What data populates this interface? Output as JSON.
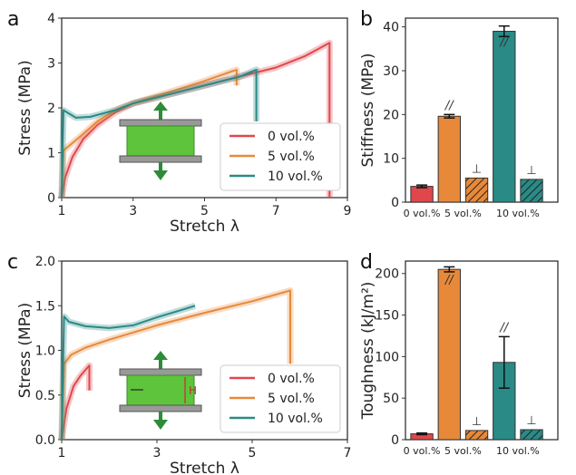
{
  "chart_data": [
    {
      "panel": "a",
      "type": "line",
      "xlabel": "Stretch λ",
      "ylabel": "Stress (MPa)",
      "xlim": [
        1,
        9
      ],
      "ylim": [
        0,
        4
      ],
      "xticks": [
        "1",
        "3",
        "5",
        "7",
        "9"
      ],
      "yticks": [
        "0",
        "1",
        "2",
        "3",
        "4"
      ],
      "legend_position": "lower-right",
      "series": [
        {
          "name": "0 vol.%",
          "color": "#e0474c",
          "x": [
            1.0,
            1.1,
            1.3,
            1.6,
            2.0,
            2.5,
            3.0,
            4.0,
            5.0,
            6.0,
            7.0,
            7.8,
            8.5,
            8.5
          ],
          "y": [
            0.0,
            0.45,
            0.9,
            1.3,
            1.62,
            1.9,
            2.1,
            2.3,
            2.5,
            2.7,
            2.9,
            3.15,
            3.45,
            0.0
          ]
        },
        {
          "name": "5 vol.%",
          "color": "#e8893a",
          "x": [
            1.0,
            1.05,
            1.2,
            1.5,
            2.0,
            2.5,
            3.0,
            4.0,
            5.0,
            5.9,
            5.9
          ],
          "y": [
            0.0,
            1.05,
            1.15,
            1.35,
            1.7,
            1.95,
            2.1,
            2.35,
            2.6,
            2.85,
            2.5
          ]
        },
        {
          "name": "10 vol.%",
          "color": "#2a8a86",
          "x": [
            1.0,
            1.05,
            1.15,
            1.4,
            1.8,
            2.5,
            3.0,
            4.0,
            5.0,
            6.0,
            6.45,
            6.45
          ],
          "y": [
            0.0,
            1.95,
            1.9,
            1.78,
            1.8,
            1.95,
            2.1,
            2.3,
            2.5,
            2.7,
            2.85,
            1.7
          ]
        }
      ]
    },
    {
      "panel": "b",
      "type": "bar",
      "ylabel": "Stiffness (MPa)",
      "ylim": [
        0,
        42
      ],
      "yticks": [
        "0",
        "10",
        "20",
        "30",
        "40"
      ],
      "categories": [
        "0 vol.%",
        "5 vol.%",
        "10 vol.%"
      ],
      "bars": [
        {
          "group": "0 vol.%",
          "orientation": "",
          "value": 3.6,
          "error": 0.3,
          "color": "#e0474c",
          "hatched": false
        },
        {
          "group": "5 vol.%",
          "orientation": "//",
          "value": 19.6,
          "error": 0.4,
          "color": "#e8893a",
          "hatched": false
        },
        {
          "group": "5 vol.%",
          "orientation": "⊥",
          "value": 5.5,
          "error": 0.0,
          "color": "#e8893a",
          "hatched": true
        },
        {
          "group": "10 vol.%",
          "orientation": "//",
          "value": 39.0,
          "error": 1.2,
          "color": "#2a8a86",
          "hatched": false
        },
        {
          "group": "10 vol.%",
          "orientation": "⊥",
          "value": 5.2,
          "error": 0.0,
          "color": "#2a8a86",
          "hatched": true
        }
      ]
    },
    {
      "panel": "c",
      "type": "line",
      "xlabel": "Stretch λ",
      "ylabel": "Stress (MPa)",
      "xlim": [
        1,
        7
      ],
      "ylim": [
        0,
        2.0
      ],
      "xticks": [
        "1",
        "3",
        "5",
        "7"
      ],
      "yticks": [
        "0.0",
        "0.5",
        "1.0",
        "1.5",
        "2.0"
      ],
      "legend_position": "lower-right",
      "inset_label": "H",
      "series": [
        {
          "name": "0 vol.%",
          "color": "#e0474c",
          "x": [
            1.0,
            1.1,
            1.25,
            1.4,
            1.58,
            1.58
          ],
          "y": [
            0.0,
            0.35,
            0.6,
            0.72,
            0.83,
            0.55
          ]
        },
        {
          "name": "5 vol.%",
          "color": "#e8893a",
          "x": [
            1.0,
            1.05,
            1.2,
            1.5,
            2.0,
            2.5,
            3.0,
            4.0,
            5.0,
            5.8,
            5.8
          ],
          "y": [
            0.0,
            0.85,
            0.95,
            1.03,
            1.12,
            1.2,
            1.28,
            1.42,
            1.55,
            1.67,
            0.85
          ]
        },
        {
          "name": "10 vol.%",
          "color": "#2a8a86",
          "x": [
            1.0,
            1.05,
            1.15,
            1.5,
            2.0,
            2.5,
            3.0,
            3.5,
            3.8
          ],
          "y": [
            0.0,
            1.38,
            1.32,
            1.27,
            1.25,
            1.28,
            1.37,
            1.45,
            1.5
          ]
        }
      ]
    },
    {
      "panel": "d",
      "type": "bar",
      "ylabel": "Toughness (kJ/m²)",
      "ylim": [
        0,
        215
      ],
      "yticks": [
        "0",
        "50",
        "100",
        "150",
        "200"
      ],
      "categories": [
        "0 vol.%",
        "5 vol.%",
        "10 vol.%"
      ],
      "bars": [
        {
          "group": "0 vol.%",
          "orientation": "",
          "value": 7,
          "error": 1,
          "color": "#e0474c",
          "hatched": false
        },
        {
          "group": "5 vol.%",
          "orientation": "//",
          "value": 205,
          "error": 3,
          "color": "#e8893a",
          "hatched": false
        },
        {
          "group": "5 vol.%",
          "orientation": "⊥",
          "value": 11,
          "error": 0,
          "color": "#e8893a",
          "hatched": true
        },
        {
          "group": "10 vol.%",
          "orientation": "//",
          "value": 93,
          "error": 31,
          "color": "#2a8a86",
          "hatched": false
        },
        {
          "group": "10 vol.%",
          "orientation": "⊥",
          "value": 12,
          "error": 0,
          "color": "#2a8a86",
          "hatched": true
        }
      ]
    }
  ]
}
